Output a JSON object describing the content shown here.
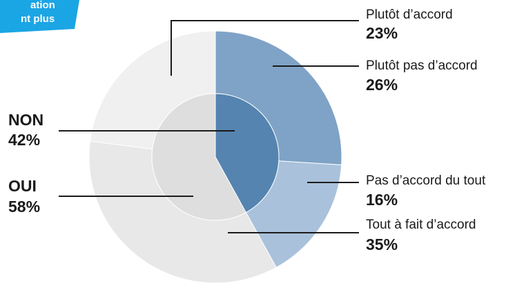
{
  "banner": [
    "ation",
    "nt plus"
  ],
  "chart_data": {
    "type": "pie",
    "rings": [
      {
        "categories": [
          "NON",
          "OUI"
        ],
        "values": [
          42,
          58
        ],
        "value_labels": [
          "42%",
          "58%"
        ],
        "colors": [
          "#5584b0",
          "#dedede"
        ]
      },
      {
        "categories": [
          "Plutôt pas d’accord",
          "Pas d’accord du tout",
          "Tout à fait d’accord",
          "Plutôt d’accord"
        ],
        "values": [
          26,
          16,
          35,
          23
        ],
        "value_labels": [
          "26%",
          "16%",
          "35%",
          "23%"
        ],
        "colors": [
          "#7fa3c6",
          "#a9c1db",
          "#e8e8e8",
          "#f0f0f0"
        ]
      }
    ]
  }
}
